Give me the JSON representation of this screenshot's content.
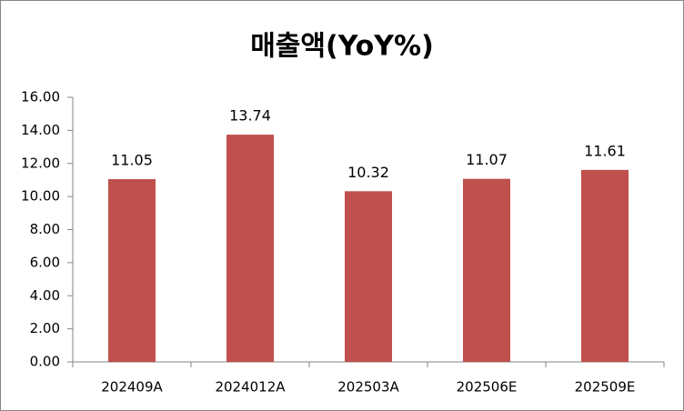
{
  "chart_data": {
    "type": "bar",
    "title": "매출액(YoY%)",
    "categories": [
      "202409A",
      "2024012A",
      "202503A",
      "202506E",
      "202509E"
    ],
    "values": [
      11.05,
      13.74,
      10.32,
      11.07,
      11.61
    ],
    "color": "#c0504d",
    "ylim": [
      0,
      16
    ],
    "yticks": [
      {
        "value": 0,
        "label": "0.00"
      },
      {
        "value": 2,
        "label": "2.00"
      },
      {
        "value": 4,
        "label": "4.00"
      },
      {
        "value": 6,
        "label": "6.00"
      },
      {
        "value": 8,
        "label": "8.00"
      },
      {
        "value": 10,
        "label": "10.00"
      },
      {
        "value": 12,
        "label": "12.00"
      },
      {
        "value": 14,
        "label": "14.00"
      },
      {
        "value": 16,
        "label": "16.00"
      }
    ],
    "grid": false
  }
}
